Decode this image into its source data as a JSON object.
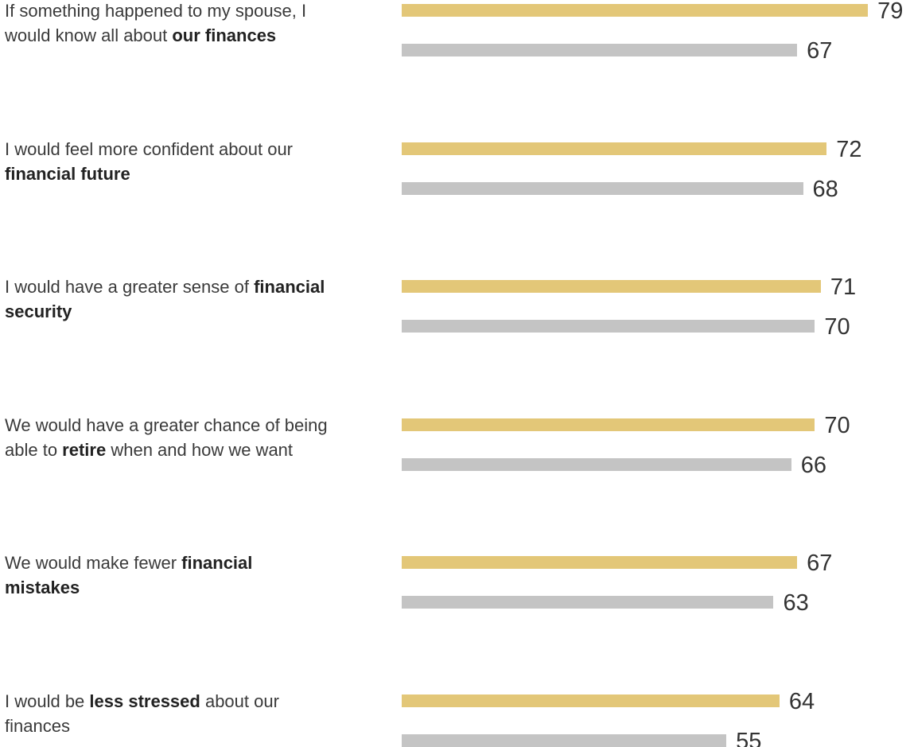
{
  "chart_data": {
    "type": "bar",
    "orientation": "horizontal",
    "categories": [
      [
        {
          "text": "If something happened to my spouse, I would know all about ",
          "bold": false
        },
        {
          "text": "our finances",
          "bold": true
        }
      ],
      [
        {
          "text": "I would feel more confident about our ",
          "bold": false
        },
        {
          "text": "financial future",
          "bold": true
        }
      ],
      [
        {
          "text": "I would have a greater sense of ",
          "bold": false
        },
        {
          "text": "financial security",
          "bold": true
        }
      ],
      [
        {
          "text": "We would have a greater chance of being able to ",
          "bold": false
        },
        {
          "text": "retire",
          "bold": true
        },
        {
          "text": " when and how we want",
          "bold": false
        }
      ],
      [
        {
          "text": "We would make fewer ",
          "bold": false
        },
        {
          "text": "financial mistakes",
          "bold": true
        }
      ],
      [
        {
          "text": "I would be ",
          "bold": false
        },
        {
          "text": "less stressed",
          "bold": true
        },
        {
          "text": " about our finances",
          "bold": false
        }
      ]
    ],
    "series": [
      {
        "color": "#e3c778",
        "values": [
          79,
          72,
          71,
          70,
          67,
          64
        ]
      },
      {
        "color": "#c4c4c4",
        "values": [
          67,
          68,
          70,
          66,
          63,
          55
        ]
      }
    ]
  }
}
